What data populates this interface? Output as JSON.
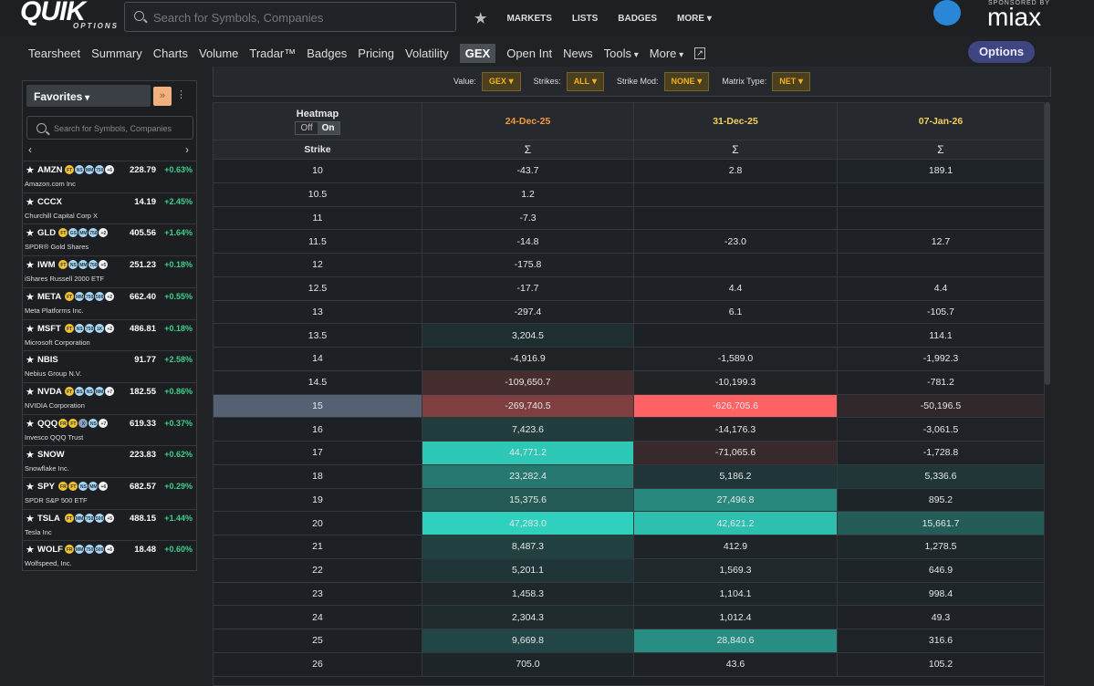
{
  "header": {
    "logo": "QUIK",
    "logo_sub": "OPTIONS",
    "search_placeholder": "Search for Symbols, Companies",
    "nav": [
      "MARKETS",
      "LISTS",
      "BADGES",
      "MORE"
    ],
    "sponsor_label": "SPONSORED BY",
    "sponsor": "miax"
  },
  "tabs": {
    "items": [
      "Tearsheet",
      "Summary",
      "Charts",
      "Volume",
      "Tradar™",
      "Badges",
      "Pricing",
      "Volatility",
      "GEX",
      "Open Int",
      "News",
      "Tools",
      "More"
    ],
    "active": 8,
    "button": "Options"
  },
  "controls": [
    {
      "label": "Value:",
      "value": "GEX"
    },
    {
      "label": "Strikes:",
      "value": "ALL"
    },
    {
      "label": "Strike Mod:",
      "value": "NONE"
    },
    {
      "label": "Matrix Type:",
      "value": "NET"
    }
  ],
  "sidebar": {
    "title": "Favorites",
    "search_placeholder": "Search for Symbols, Companies",
    "items": [
      {
        "symbol": "AMZN",
        "badges": [
          "FT",
          "NS",
          "MM",
          "750",
          "+6"
        ],
        "price": "228.79",
        "change": "+0.63%",
        "name": "Amazon.com Inc"
      },
      {
        "symbol": "CCCX",
        "badges": [],
        "price": "14.19",
        "change": "+2.45%",
        "name": "Churchill Capital Corp X"
      },
      {
        "symbol": "GLD",
        "badges": [
          "FT",
          "GS",
          "MM",
          "750",
          "+2"
        ],
        "price": "405.56",
        "change": "+1.64%",
        "name": "SPDR® Gold Shares"
      },
      {
        "symbol": "IWM",
        "badges": [
          "FT",
          "NS",
          "MM",
          "750",
          "+5"
        ],
        "price": "251.23",
        "change": "+0.18%",
        "name": "iShares Russell 2000 ETF"
      },
      {
        "symbol": "META",
        "badges": [
          "FT",
          "MM",
          "750",
          "500",
          "+2"
        ],
        "price": "662.40",
        "change": "+0.55%",
        "name": "Meta Platforms Inc."
      },
      {
        "symbol": "MSFT",
        "badges": [
          "FT",
          "NS",
          "750",
          "1K",
          "+2"
        ],
        "price": "486.81",
        "change": "+0.18%",
        "name": "Microsoft Corporation"
      },
      {
        "symbol": "NBIS",
        "badges": [],
        "price": "91.77",
        "change": "+2.58%",
        "name": "Nebius Group N.V."
      },
      {
        "symbol": "NVDA",
        "badges": [
          "FT",
          "BS",
          "NS",
          "MM",
          "+7"
        ],
        "price": "182.55",
        "change": "+0.86%",
        "name": "NVIDIA Corporation"
      },
      {
        "symbol": "QQQ",
        "badges": [
          "FR",
          "FT",
          "X",
          "NS",
          "+7"
        ],
        "price": "619.33",
        "change": "+0.37%",
        "name": "Invesco QQQ Trust"
      },
      {
        "symbol": "SNOW",
        "badges": [],
        "price": "223.83",
        "change": "+0.62%",
        "name": "Snowflake Inc."
      },
      {
        "symbol": "SPY",
        "badges": [
          "FR",
          "FT",
          "NS",
          "MM",
          "+6"
        ],
        "price": "682.57",
        "change": "+0.29%",
        "name": "SPDR S&P 500 ETF"
      },
      {
        "symbol": "TSLA",
        "badges": [
          "FT",
          "MM",
          "750",
          "500",
          "+5"
        ],
        "price": "488.15",
        "change": "+1.44%",
        "name": "Tesla Inc"
      },
      {
        "symbol": "WOLF",
        "badges": [
          "FR",
          "MM",
          "750",
          "500",
          "+6"
        ],
        "price": "18.48",
        "change": "+0.60%",
        "name": "Wolfspeed, Inc."
      }
    ]
  },
  "table": {
    "heatmap_label": "Heatmap",
    "toggle": [
      "Off",
      "On"
    ],
    "toggle_active": 1,
    "strike_header": "Strike",
    "columns": [
      {
        "date": "24-Dec-25",
        "sum": "Σ"
      },
      {
        "date": "31-Dec-25",
        "sum": "Σ"
      },
      {
        "date": "07-Jan-26",
        "sum": "Σ"
      }
    ],
    "rows": [
      {
        "strike": "10",
        "values": [
          "-43.7",
          "2.8",
          "189.1"
        ]
      },
      {
        "strike": "10.5",
        "values": [
          "1.2",
          null,
          null
        ]
      },
      {
        "strike": "11",
        "values": [
          "-7.3",
          null,
          null
        ]
      },
      {
        "strike": "11.5",
        "values": [
          "-14.8",
          "-23.0",
          "12.7"
        ]
      },
      {
        "strike": "12",
        "values": [
          "-175.8",
          null,
          null
        ]
      },
      {
        "strike": "12.5",
        "values": [
          "-17.7",
          "4.4",
          "4.4"
        ]
      },
      {
        "strike": "13",
        "values": [
          "-297.4",
          "6.1",
          "-105.7"
        ]
      },
      {
        "strike": "13.5",
        "values": [
          "3,204.5",
          null,
          "114.1"
        ]
      },
      {
        "strike": "14",
        "values": [
          "-4,916.9",
          "-1,589.0",
          "-1,992.3"
        ]
      },
      {
        "strike": "14.5",
        "values": [
          "-109,650.7",
          "-10,199.3",
          "-781.2"
        ]
      },
      {
        "strike": "15",
        "values": [
          "-269,740.5",
          "-626,705.6",
          "-50,196.5"
        ]
      },
      {
        "strike": "16",
        "values": [
          "7,423.6",
          "-14,176.3",
          "-3,061.5"
        ]
      },
      {
        "strike": "17",
        "values": [
          "44,771.2",
          "-71,065.6",
          "-1,728.8"
        ]
      },
      {
        "strike": "18",
        "values": [
          "23,282.4",
          "5,186.2",
          "5,336.6"
        ]
      },
      {
        "strike": "19",
        "values": [
          "15,375.6",
          "27,496.8",
          "895.2"
        ]
      },
      {
        "strike": "20",
        "values": [
          "47,283.0",
          "42,621.2",
          "15,661.7"
        ]
      },
      {
        "strike": "21",
        "values": [
          "8,487.3",
          "412.9",
          "1,278.5"
        ]
      },
      {
        "strike": "22",
        "values": [
          "5,201.1",
          "1,569.3",
          "646.9"
        ]
      },
      {
        "strike": "23",
        "values": [
          "1,458.3",
          "1,104.1",
          "998.4"
        ]
      },
      {
        "strike": "24",
        "values": [
          "2,304.3",
          "1,012.4",
          "49.3"
        ]
      },
      {
        "strike": "25",
        "values": [
          "9,669.8",
          "28,840.6",
          "316.6"
        ]
      },
      {
        "strike": "26",
        "values": [
          "705.0",
          "43.6",
          "105.2"
        ]
      }
    ]
  }
}
